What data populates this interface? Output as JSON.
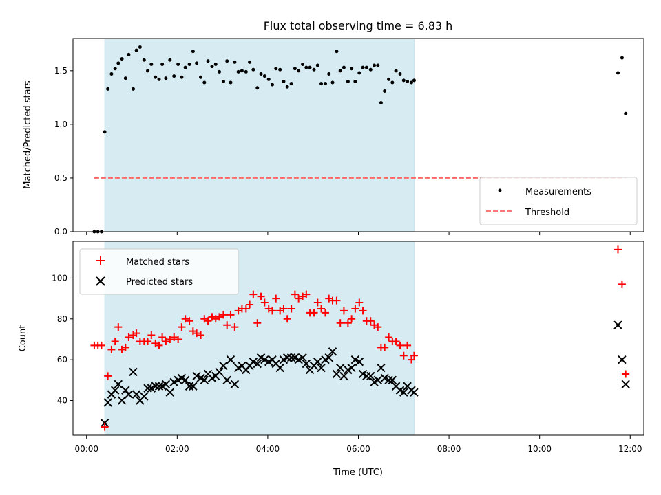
{
  "chart_data": [
    {
      "type": "scatter",
      "panel": "top",
      "title": "Flux total observing time = 6.83 h",
      "xlabel": "",
      "ylabel": "Matched/Predicted stars",
      "xlim": [
        -0.3,
        12.3
      ],
      "ylim": [
        0,
        1.8
      ],
      "yticks": [
        0.0,
        0.5,
        1.0,
        1.5
      ],
      "ytick_labels": [
        "0.0",
        "0.5",
        "1.0",
        "1.5"
      ],
      "shaded_range_hours": [
        0.4,
        7.23
      ],
      "shade_color": "#add8e6",
      "legend_position": "lower right",
      "series": [
        {
          "name": "Measurements",
          "marker": "dot",
          "color": "#000000",
          "points": [
            [
              0.17,
              0.0
            ],
            [
              0.25,
              0.0
            ],
            [
              0.33,
              0.0
            ],
            [
              0.4,
              0.93
            ],
            [
              0.47,
              1.33
            ],
            [
              0.55,
              1.47
            ],
            [
              0.63,
              1.52
            ],
            [
              0.7,
              1.57
            ],
            [
              0.78,
              1.61
            ],
            [
              0.86,
              1.43
            ],
            [
              0.93,
              1.65
            ],
            [
              1.03,
              1.33
            ],
            [
              1.1,
              1.69
            ],
            [
              1.18,
              1.72
            ],
            [
              1.27,
              1.6
            ],
            [
              1.35,
              1.5
            ],
            [
              1.43,
              1.56
            ],
            [
              1.52,
              1.44
            ],
            [
              1.6,
              1.42
            ],
            [
              1.67,
              1.56
            ],
            [
              1.75,
              1.43
            ],
            [
              1.84,
              1.6
            ],
            [
              1.93,
              1.45
            ],
            [
              2.02,
              1.56
            ],
            [
              2.1,
              1.44
            ],
            [
              2.18,
              1.53
            ],
            [
              2.27,
              1.56
            ],
            [
              2.35,
              1.68
            ],
            [
              2.43,
              1.57
            ],
            [
              2.52,
              1.44
            ],
            [
              2.6,
              1.39
            ],
            [
              2.68,
              1.59
            ],
            [
              2.77,
              1.54
            ],
            [
              2.85,
              1.56
            ],
            [
              2.93,
              1.49
            ],
            [
              3.02,
              1.4
            ],
            [
              3.1,
              1.59
            ],
            [
              3.18,
              1.39
            ],
            [
              3.27,
              1.58
            ],
            [
              3.35,
              1.49
            ],
            [
              3.43,
              1.5
            ],
            [
              3.52,
              1.49
            ],
            [
              3.6,
              1.58
            ],
            [
              3.68,
              1.51
            ],
            [
              3.77,
              1.34
            ],
            [
              3.85,
              1.47
            ],
            [
              3.93,
              1.45
            ],
            [
              4.02,
              1.42
            ],
            [
              4.1,
              1.37
            ],
            [
              4.18,
              1.52
            ],
            [
              4.27,
              1.51
            ],
            [
              4.35,
              1.4
            ],
            [
              4.43,
              1.35
            ],
            [
              4.52,
              1.38
            ],
            [
              4.6,
              1.52
            ],
            [
              4.68,
              1.5
            ],
            [
              4.77,
              1.56
            ],
            [
              4.85,
              1.53
            ],
            [
              4.93,
              1.53
            ],
            [
              5.02,
              1.51
            ],
            [
              5.1,
              1.55
            ],
            [
              5.18,
              1.38
            ],
            [
              5.27,
              1.38
            ],
            [
              5.35,
              1.47
            ],
            [
              5.43,
              1.39
            ],
            [
              5.52,
              1.68
            ],
            [
              5.6,
              1.5
            ],
            [
              5.68,
              1.53
            ],
            [
              5.77,
              1.4
            ],
            [
              5.85,
              1.52
            ],
            [
              5.93,
              1.4
            ],
            [
              6.02,
              1.48
            ],
            [
              6.1,
              1.53
            ],
            [
              6.18,
              1.53
            ],
            [
              6.27,
              1.51
            ],
            [
              6.35,
              1.55
            ],
            [
              6.43,
              1.55
            ],
            [
              6.5,
              1.2
            ],
            [
              6.58,
              1.31
            ],
            [
              6.67,
              1.42
            ],
            [
              6.75,
              1.39
            ],
            [
              6.83,
              1.5
            ],
            [
              6.92,
              1.47
            ],
            [
              7.0,
              1.41
            ],
            [
              7.08,
              1.4
            ],
            [
              7.17,
              1.39
            ],
            [
              7.23,
              1.41
            ],
            [
              11.73,
              1.48
            ],
            [
              11.82,
              1.62
            ],
            [
              11.9,
              1.1
            ]
          ]
        },
        {
          "name": "Threshold",
          "style": "dashed",
          "color": "#ff6666",
          "x": [
            0.17,
            11.9
          ],
          "y": [
            0.5,
            0.5
          ]
        }
      ]
    },
    {
      "type": "scatter",
      "panel": "bottom",
      "xlabel": "Time (UTC)",
      "ylabel": "Count",
      "xlim": [
        -0.3,
        12.3
      ],
      "ylim": [
        23,
        118
      ],
      "yticks": [
        40,
        60,
        80,
        100
      ],
      "ytick_labels": [
        "40",
        "60",
        "80",
        "100"
      ],
      "xticks": [
        0,
        2,
        4,
        6,
        8,
        10,
        12
      ],
      "xtick_labels": [
        "00:00",
        "02:00",
        "04:00",
        "06:00",
        "08:00",
        "10:00",
        "12:00"
      ],
      "shaded_range_hours": [
        0.4,
        7.23
      ],
      "shade_color": "#add8e6",
      "legend_position": "upper left",
      "series": [
        {
          "name": "Matched stars",
          "marker": "plus",
          "color": "#ff0000",
          "points": [
            [
              0.17,
              67
            ],
            [
              0.25,
              67
            ],
            [
              0.33,
              67
            ],
            [
              0.4,
              27
            ],
            [
              0.47,
              52
            ],
            [
              0.55,
              65
            ],
            [
              0.63,
              69
            ],
            [
              0.7,
              76
            ],
            [
              0.78,
              65
            ],
            [
              0.86,
              66
            ],
            [
              0.93,
              71
            ],
            [
              1.03,
              72
            ],
            [
              1.1,
              73
            ],
            [
              1.18,
              69
            ],
            [
              1.27,
              69
            ],
            [
              1.35,
              69
            ],
            [
              1.43,
              72
            ],
            [
              1.52,
              68
            ],
            [
              1.6,
              67
            ],
            [
              1.67,
              71
            ],
            [
              1.75,
              69
            ],
            [
              1.84,
              70
            ],
            [
              1.93,
              71
            ],
            [
              2.02,
              70
            ],
            [
              2.1,
              76
            ],
            [
              2.18,
              80
            ],
            [
              2.27,
              79
            ],
            [
              2.35,
              74
            ],
            [
              2.43,
              73
            ],
            [
              2.52,
              72
            ],
            [
              2.6,
              80
            ],
            [
              2.68,
              79
            ],
            [
              2.77,
              81
            ],
            [
              2.85,
              80
            ],
            [
              2.93,
              81
            ],
            [
              3.02,
              82
            ],
            [
              3.1,
              77
            ],
            [
              3.18,
              82
            ],
            [
              3.27,
              76
            ],
            [
              3.35,
              84
            ],
            [
              3.43,
              85
            ],
            [
              3.52,
              85
            ],
            [
              3.6,
              87
            ],
            [
              3.68,
              92
            ],
            [
              3.77,
              78
            ],
            [
              3.85,
              91
            ],
            [
              3.93,
              88
            ],
            [
              4.02,
              85
            ],
            [
              4.1,
              84
            ],
            [
              4.18,
              90
            ],
            [
              4.27,
              84
            ],
            [
              4.35,
              85
            ],
            [
              4.43,
              80
            ],
            [
              4.52,
              85
            ],
            [
              4.6,
              92
            ],
            [
              4.68,
              90
            ],
            [
              4.77,
              91
            ],
            [
              4.85,
              92
            ],
            [
              4.93,
              83
            ],
            [
              5.02,
              83
            ],
            [
              5.1,
              88
            ],
            [
              5.18,
              85
            ],
            [
              5.27,
              83
            ],
            [
              5.35,
              90
            ],
            [
              5.43,
              89
            ],
            [
              5.52,
              89
            ],
            [
              5.6,
              78
            ],
            [
              5.68,
              84
            ],
            [
              5.77,
              78
            ],
            [
              5.85,
              80
            ],
            [
              5.93,
              85
            ],
            [
              6.02,
              88
            ],
            [
              6.1,
              84
            ],
            [
              6.18,
              79
            ],
            [
              6.27,
              79
            ],
            [
              6.35,
              77
            ],
            [
              6.43,
              76
            ],
            [
              6.5,
              66
            ],
            [
              6.58,
              66
            ],
            [
              6.67,
              71
            ],
            [
              6.75,
              69
            ],
            [
              6.83,
              69
            ],
            [
              6.92,
              67
            ],
            [
              7.0,
              62
            ],
            [
              7.08,
              67
            ],
            [
              7.17,
              60
            ],
            [
              7.23,
              62
            ],
            [
              11.73,
              114
            ],
            [
              11.82,
              97
            ],
            [
              11.9,
              53
            ]
          ]
        },
        {
          "name": "Predicted stars",
          "marker": "x",
          "color": "#000000",
          "points": [
            [
              0.4,
              29
            ],
            [
              0.47,
              39
            ],
            [
              0.55,
              43
            ],
            [
              0.63,
              45
            ],
            [
              0.7,
              48
            ],
            [
              0.78,
              40
            ],
            [
              0.86,
              45
            ],
            [
              0.93,
              43
            ],
            [
              1.03,
              54
            ],
            [
              1.1,
              43
            ],
            [
              1.18,
              40
            ],
            [
              1.27,
              42
            ],
            [
              1.35,
              46
            ],
            [
              1.43,
              46
            ],
            [
              1.52,
              47
            ],
            [
              1.6,
              47
            ],
            [
              1.67,
              47
            ],
            [
              1.75,
              48
            ],
            [
              1.84,
              44
            ],
            [
              1.93,
              49
            ],
            [
              2.02,
              50
            ],
            [
              2.1,
              51
            ],
            [
              2.18,
              50
            ],
            [
              2.27,
              47
            ],
            [
              2.35,
              47
            ],
            [
              2.43,
              52
            ],
            [
              2.52,
              51
            ],
            [
              2.6,
              50
            ],
            [
              2.68,
              53
            ],
            [
              2.77,
              51
            ],
            [
              2.85,
              52
            ],
            [
              2.93,
              54
            ],
            [
              3.02,
              57
            ],
            [
              3.1,
              50
            ],
            [
              3.18,
              60
            ],
            [
              3.27,
              48
            ],
            [
              3.35,
              56
            ],
            [
              3.43,
              57
            ],
            [
              3.52,
              55
            ],
            [
              3.6,
              57
            ],
            [
              3.68,
              59
            ],
            [
              3.77,
              58
            ],
            [
              3.85,
              61
            ],
            [
              3.93,
              60
            ],
            [
              4.02,
              59
            ],
            [
              4.1,
              60
            ],
            [
              4.18,
              58
            ],
            [
              4.27,
              56
            ],
            [
              4.35,
              60
            ],
            [
              4.43,
              61
            ],
            [
              4.52,
              61
            ],
            [
              4.6,
              61
            ],
            [
              4.68,
              60
            ],
            [
              4.77,
              61
            ],
            [
              4.85,
              58
            ],
            [
              4.93,
              55
            ],
            [
              5.02,
              57
            ],
            [
              5.1,
              59
            ],
            [
              5.18,
              56
            ],
            [
              5.27,
              60
            ],
            [
              5.35,
              61
            ],
            [
              5.43,
              64
            ],
            [
              5.52,
              53
            ],
            [
              5.6,
              56
            ],
            [
              5.68,
              52
            ],
            [
              5.77,
              55
            ],
            [
              5.85,
              56
            ],
            [
              5.93,
              60
            ],
            [
              6.02,
              59
            ],
            [
              6.1,
              53
            ],
            [
              6.18,
              52
            ],
            [
              6.27,
              52
            ],
            [
              6.35,
              49
            ],
            [
              6.43,
              50
            ],
            [
              6.5,
              56
            ],
            [
              6.58,
              51
            ],
            [
              6.67,
              50
            ],
            [
              6.75,
              50
            ],
            [
              6.83,
              47
            ],
            [
              6.92,
              45
            ],
            [
              7.0,
              44
            ],
            [
              7.08,
              47
            ],
            [
              7.17,
              45
            ],
            [
              7.23,
              44
            ],
            [
              11.73,
              77
            ],
            [
              11.82,
              60
            ],
            [
              11.9,
              48
            ]
          ]
        }
      ]
    }
  ]
}
